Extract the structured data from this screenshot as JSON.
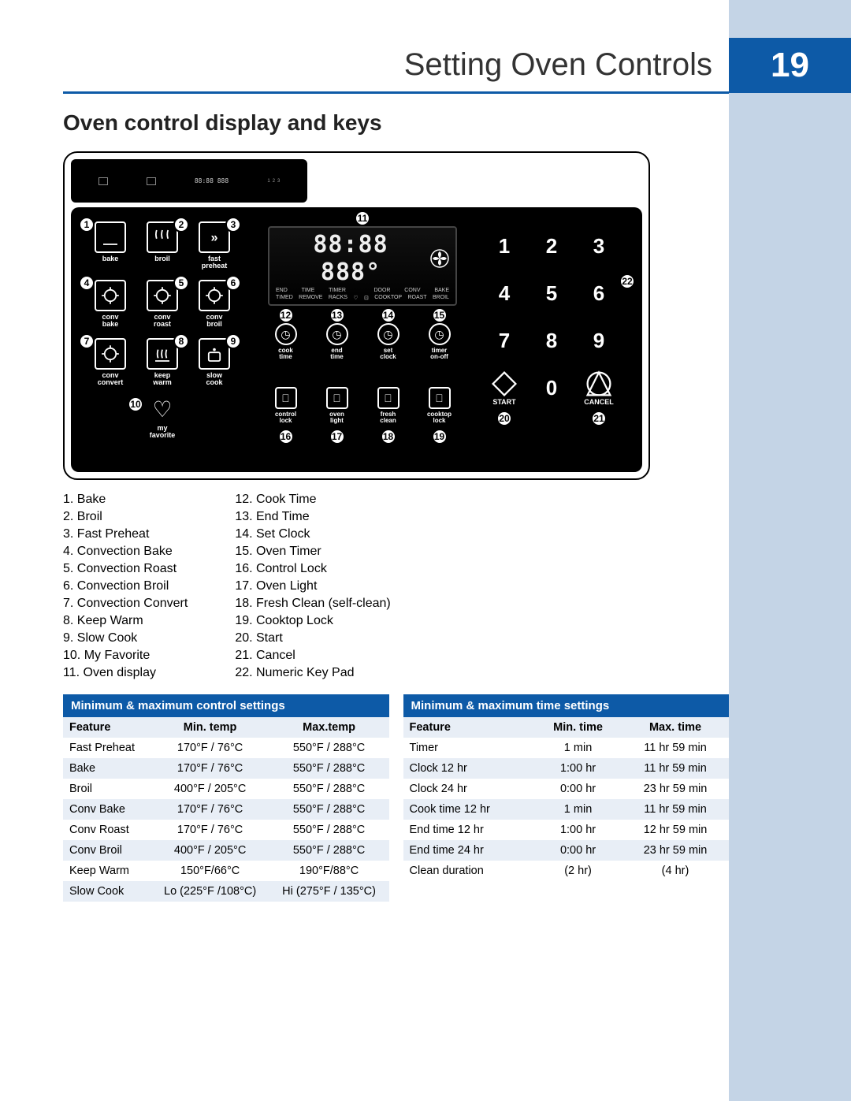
{
  "colors": {
    "accent": "#0d5aa7",
    "side_strip": "#c4d4e6",
    "panel_bg": "#000000",
    "panel_fg": "#ffffff",
    "table_header_bg": "#0d5aa7",
    "table_row_alt": "#e8eef6",
    "text": "#000000"
  },
  "header": {
    "title": "Setting Oven Controls",
    "page_number": "19"
  },
  "section_title": "Oven control display and keys",
  "panel": {
    "display_text": "88:88 888°",
    "display_sublabels": [
      "END",
      "TIME",
      "TIMER",
      "",
      "DOOR",
      "CONV",
      "BAKE"
    ],
    "display_sublabels2": [
      "TIMED",
      "REMOVE",
      "RACKS",
      "♡",
      "⊡",
      "COOKTOP",
      "ROAST",
      "BROIL"
    ],
    "fan_icon": "fan-icon",
    "left_icons": [
      {
        "n": "1",
        "label": "bake",
        "pos": "tl"
      },
      {
        "n": "2",
        "label": "broil",
        "pos": "tr"
      },
      {
        "n": "3",
        "label": "fast\npreheat",
        "pos": "tr"
      },
      {
        "n": "4",
        "label": "conv\nbake",
        "pos": "tl"
      },
      {
        "n": "5",
        "label": "conv\nroast",
        "pos": "tr"
      },
      {
        "n": "6",
        "label": "conv\nbroil",
        "pos": "tr"
      },
      {
        "n": "7",
        "label": "conv\nconvert",
        "pos": "tl"
      },
      {
        "n": "8",
        "label": "keep\nwarm",
        "pos": "tr"
      },
      {
        "n": "9",
        "label": "slow\ncook",
        "pos": "tr"
      }
    ],
    "favorite": {
      "n": "10",
      "label": "my\nfavorite"
    },
    "display_callout": "11",
    "mid_row1": [
      {
        "n": "12",
        "label": "cook\ntime"
      },
      {
        "n": "13",
        "label": "end\ntime"
      },
      {
        "n": "14",
        "label": "set\nclock"
      },
      {
        "n": "15",
        "label": "timer\non-off"
      }
    ],
    "mid_row2": [
      {
        "n": "16",
        "label": "control\nlock"
      },
      {
        "n": "17",
        "label": "oven\nlight"
      },
      {
        "n": "18",
        "label": "fresh\nclean"
      },
      {
        "n": "19",
        "label": "cooktop\nlock"
      }
    ],
    "keypad_numbers": [
      "1",
      "2",
      "3",
      "4",
      "5",
      "6",
      "7",
      "8",
      "9"
    ],
    "keypad_zero": "0",
    "start": {
      "n": "20",
      "label": "START"
    },
    "cancel": {
      "n": "21",
      "label": "CANCEL"
    },
    "keypad_callout": "22"
  },
  "legend": {
    "col1": [
      "1.   Bake",
      "2.   Broil",
      "3.   Fast Preheat",
      "4.   Convection Bake",
      "5.   Convection Roast",
      "6.   Convection Broil",
      "7.   Convection Convert",
      "8.   Keep Warm",
      "9.   Slow Cook",
      "10. My Favorite",
      "11. Oven display"
    ],
    "col2": [
      "12. Cook Time",
      "13. End Time",
      "14. Set Clock",
      "15. Oven Timer",
      "16. Control Lock",
      "17. Oven Light",
      "18. Fresh Clean (self-clean)",
      "19. Cooktop Lock",
      "20. Start",
      "21. Cancel",
      "22. Numeric Key Pad"
    ]
  },
  "table1": {
    "title": "Minimum & maximum control settings",
    "columns": [
      "Feature",
      "Min. temp",
      "Max.temp"
    ],
    "rows": [
      [
        "Fast Preheat",
        "170°F / 76°C",
        "550°F / 288°C"
      ],
      [
        "Bake",
        "170°F / 76°C",
        "550°F / 288°C"
      ],
      [
        "Broil",
        "400°F / 205°C",
        "550°F / 288°C"
      ],
      [
        "Conv Bake",
        "170°F / 76°C",
        "550°F / 288°C"
      ],
      [
        "Conv Roast",
        "170°F / 76°C",
        "550°F / 288°C"
      ],
      [
        "Conv Broil",
        "400°F / 205°C",
        "550°F / 288°C"
      ],
      [
        "Keep  Warm",
        "150°F/66°C",
        "190°F/88°C"
      ],
      [
        "Slow Cook",
        "Lo (225°F /108°C)",
        "Hi (275°F / 135°C)"
      ]
    ]
  },
  "table2": {
    "title": "Minimum & maximum time settings",
    "columns": [
      "Feature",
      "Min. time",
      "Max. time"
    ],
    "rows": [
      [
        "Timer",
        "1 min",
        "11 hr 59 min"
      ],
      [
        "Clock 12 hr",
        "1:00 hr",
        "11 hr 59 min"
      ],
      [
        "Clock 24 hr",
        "0:00 hr",
        "23 hr 59 min"
      ],
      [
        "Cook time 12 hr",
        "1 min",
        "11 hr 59 min"
      ],
      [
        "End time 12 hr",
        "1:00 hr",
        "12 hr 59 min"
      ],
      [
        "End time 24 hr",
        "0:00 hr",
        "23 hr 59 min"
      ],
      [
        "Clean duration",
        "(2 hr)",
        "(4 hr)"
      ]
    ]
  }
}
